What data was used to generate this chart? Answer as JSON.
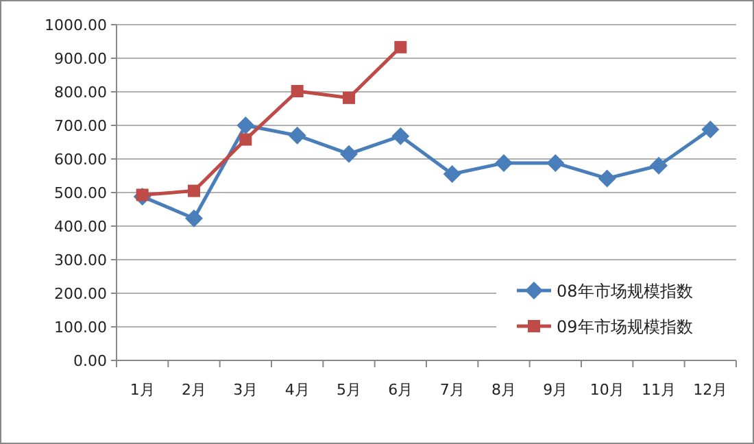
{
  "chart_data": {
    "type": "line",
    "categories": [
      "1月",
      "2月",
      "3月",
      "4月",
      "5月",
      "6月",
      "7月",
      "8月",
      "9月",
      "10月",
      "11月",
      "12月"
    ],
    "series": [
      {
        "name": "08年市场规模指数",
        "color": "#4a7ebb",
        "marker": "diamond",
        "values": [
          488,
          423,
          700,
          670,
          615,
          668,
          555,
          588,
          588,
          542,
          580,
          688
        ]
      },
      {
        "name": "09年市场规模指数",
        "color": "#be4b48",
        "marker": "square",
        "values": [
          493,
          505,
          658,
          802,
          782,
          933,
          null,
          null,
          null,
          null,
          null,
          null
        ]
      }
    ],
    "ylim": [
      0,
      1000
    ],
    "yticks": [
      {
        "value": 0,
        "label": "0.00"
      },
      {
        "value": 100,
        "label": "100.00"
      },
      {
        "value": 200,
        "label": "200.00"
      },
      {
        "value": 300,
        "label": "300.00"
      },
      {
        "value": 400,
        "label": "400.00"
      },
      {
        "value": 500,
        "label": "500.00"
      },
      {
        "value": 600,
        "label": "600.00"
      },
      {
        "value": 700,
        "label": "700.00"
      },
      {
        "value": 800,
        "label": "800.00"
      },
      {
        "value": 900,
        "label": "900.00"
      },
      {
        "value": 1000,
        "label": "1000.00"
      }
    ],
    "grid": "y",
    "legend": "bottom right",
    "line_style": "solid"
  }
}
